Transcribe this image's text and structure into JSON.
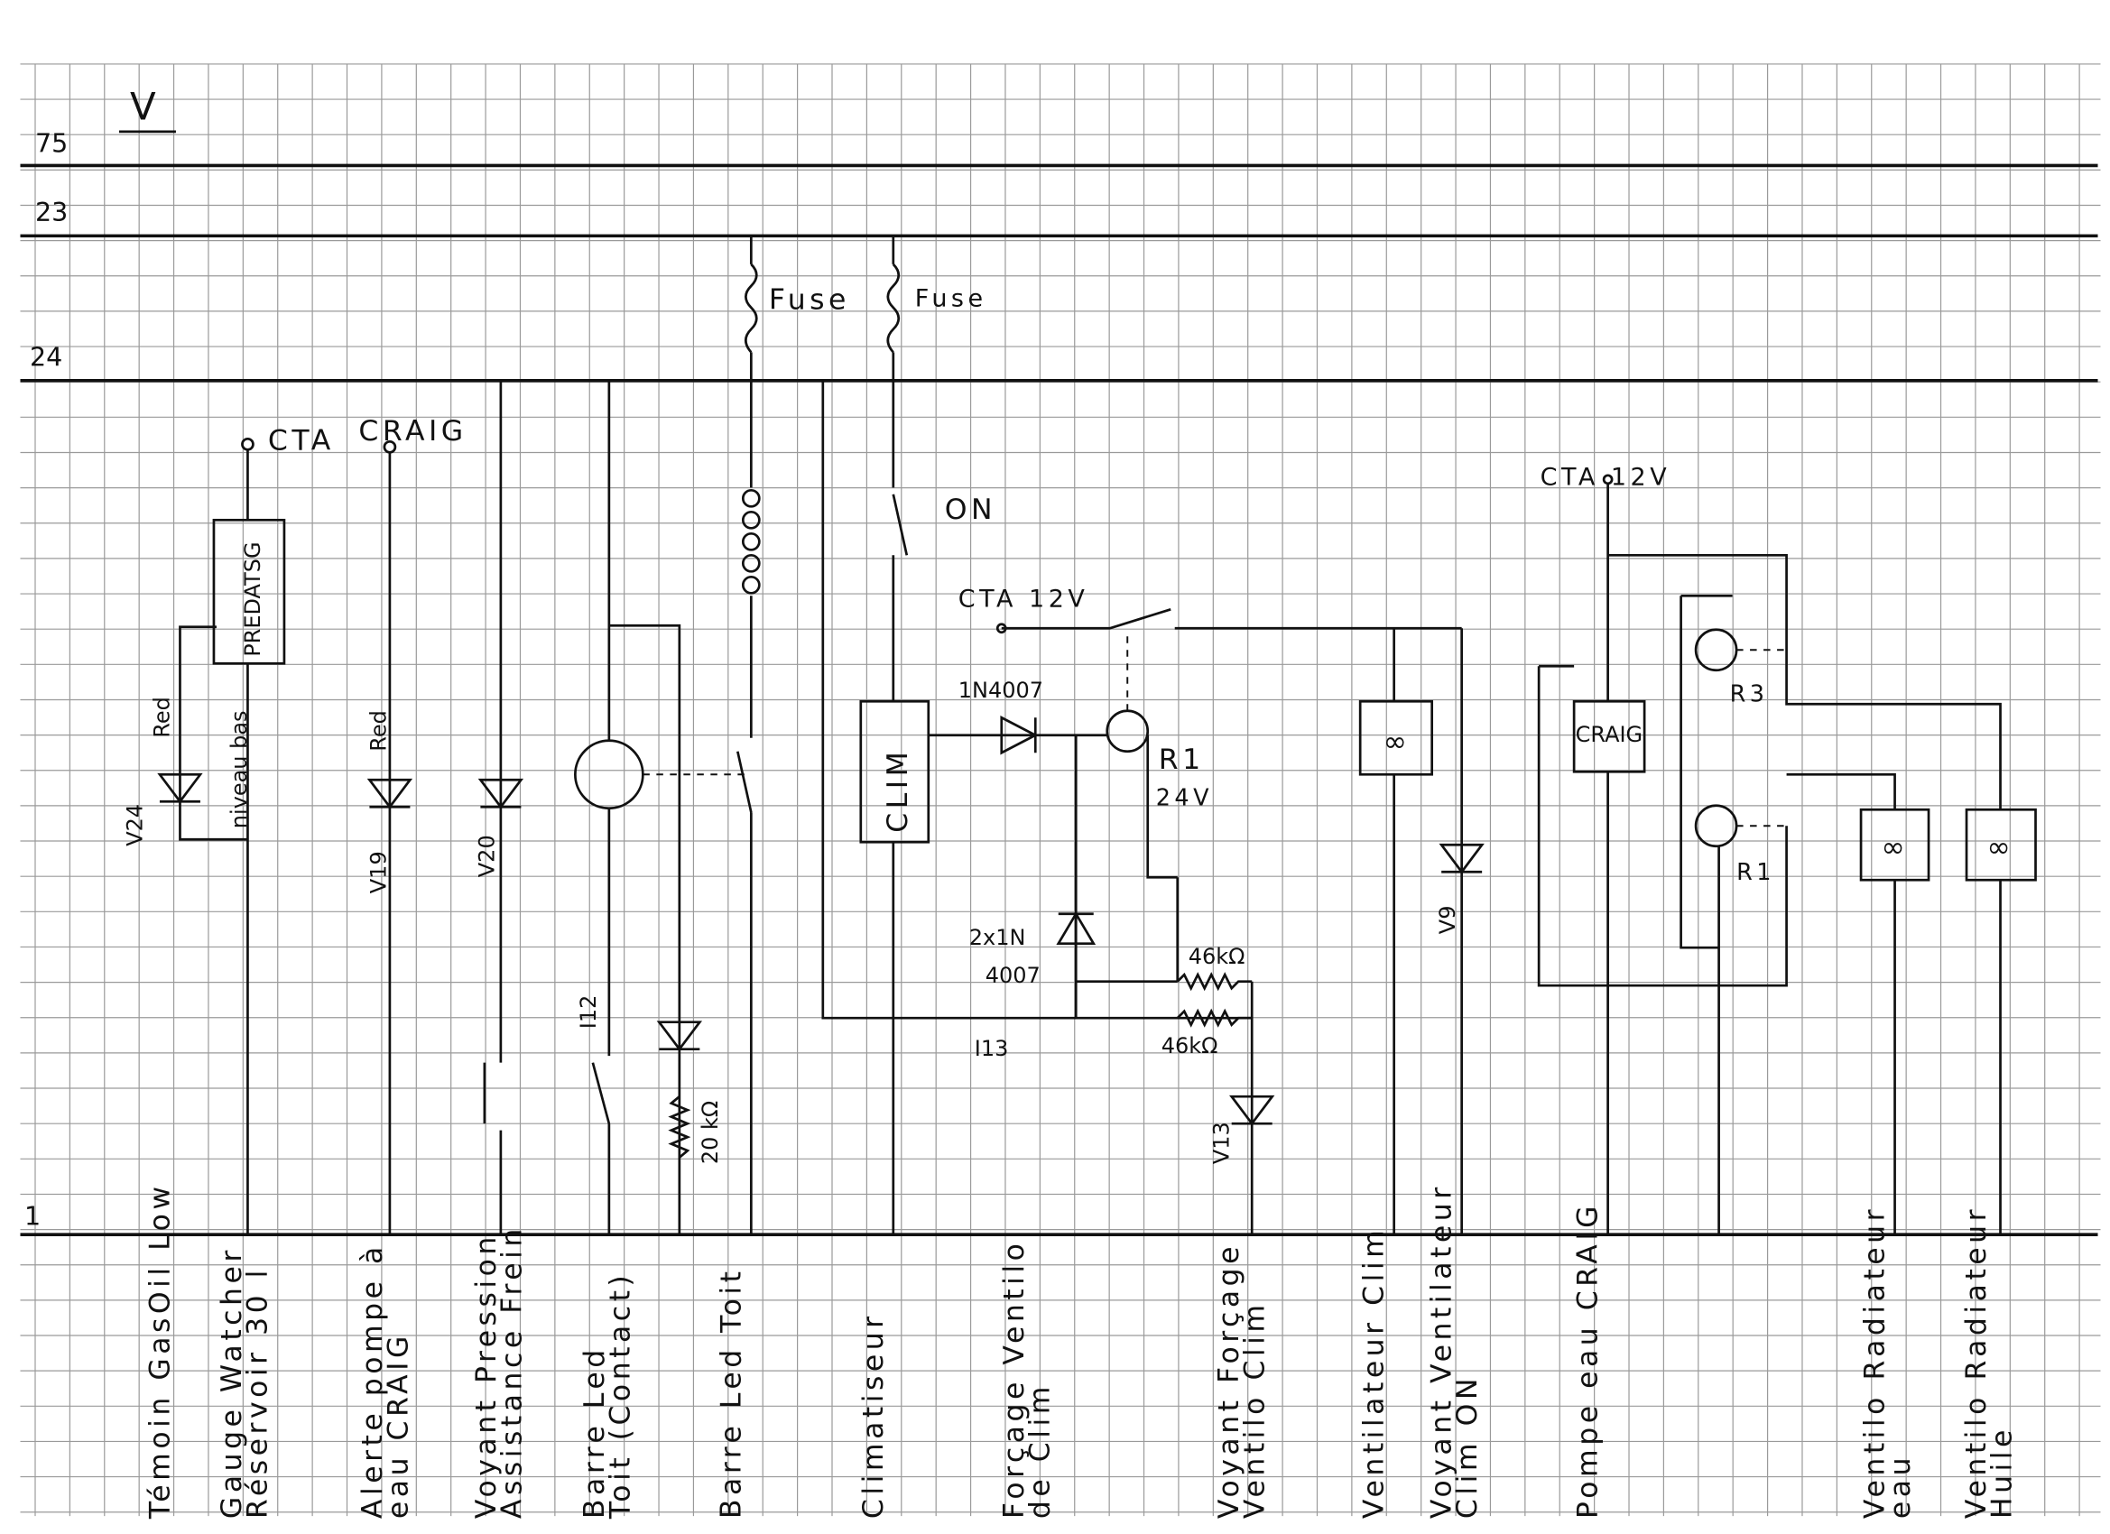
{
  "sheet": {
    "title": "V",
    "rails": [
      "75",
      "23",
      "24",
      "1"
    ]
  },
  "components": {
    "cta_craig_top": [
      "CTA",
      "CRAIG"
    ],
    "gauge_box": "PREDATSG",
    "niveau_bas": "niveau bas",
    "led_v24": [
      "V24",
      "Red"
    ],
    "led_v19": [
      "V19",
      "Red"
    ],
    "led_v20": "V20",
    "switch_i12": "I12",
    "resistor_20": "20 kΩ",
    "fuse_1": "Fuse",
    "fuse_2": "Fuse",
    "switch_on": "ON",
    "clim_box": "CLIM",
    "cta_12v_mid": "CTA 12V",
    "diode_1": "1N4007",
    "relay_r1": [
      "R1",
      "24V"
    ],
    "diode_2": [
      "2x1N",
      "4007"
    ],
    "res_46_top": "46kΩ",
    "res_46_bottom": "46kΩ",
    "switch_i13": "I13",
    "led_v13": "V13",
    "led_v9": "V9",
    "cta_12v_right": "CTA 12V",
    "craig_box": "CRAIG",
    "relay_r3": "R3",
    "relay_r1b": "R1"
  },
  "circuits": [
    {
      "label": [
        "Témoin GasOil Low"
      ]
    },
    {
      "label": [
        "Gauge Watcher",
        "Réservoir 30 l"
      ]
    },
    {
      "label": [
        "Alerte pompe à",
        "eau CRAIG"
      ]
    },
    {
      "label": [
        "Voyant Pression",
        "Assistance Frein"
      ]
    },
    {
      "label": [
        "Barre Led",
        "Toit (Contact)"
      ]
    },
    {
      "label": [
        "Barre Led Toit"
      ]
    },
    {
      "label": [
        "Climatiseur"
      ]
    },
    {
      "label": [
        "Forçage Ventilo",
        "de Clim"
      ]
    },
    {
      "label": [
        "Voyant Forçage",
        "Ventilo Clim"
      ]
    },
    {
      "label": [
        "Ventilateur Clim"
      ]
    },
    {
      "label": [
        "Voyant Ventilateur",
        "Clim ON"
      ]
    },
    {
      "label": [
        "Pompe eau CRAIG"
      ]
    },
    {
      "label": [
        "Ventilo Radiateur",
        "eau"
      ]
    },
    {
      "label": [
        "Ventilo Radiateur",
        "Huile"
      ]
    }
  ]
}
